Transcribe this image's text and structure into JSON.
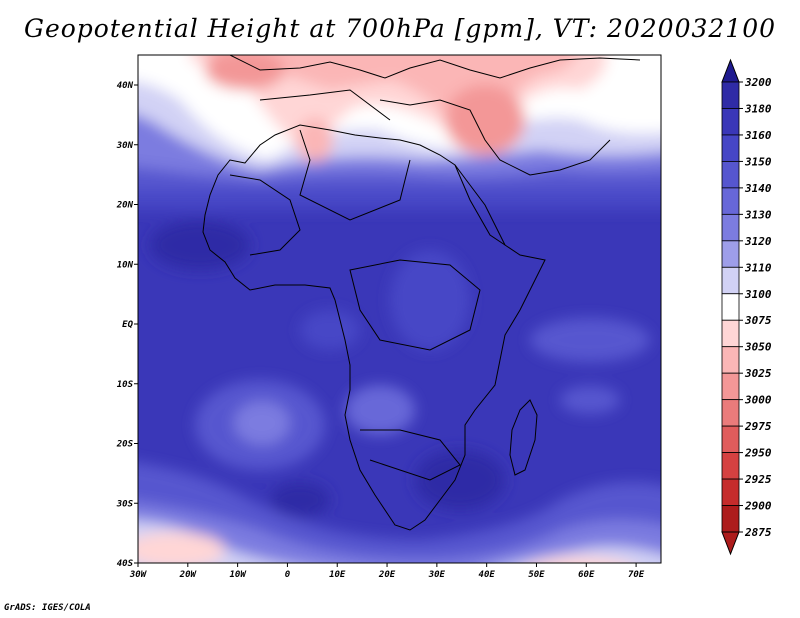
{
  "title": "Geopotential Height at 700hPa [gpm], VT: 2020032100",
  "credit": "GrADS: IGES/COLA",
  "map": {
    "lon_ticks": [
      "30W",
      "20W",
      "10W",
      "0",
      "10E",
      "20E",
      "30E",
      "40E",
      "50E",
      "60E",
      "70E"
    ],
    "lat_ticks": [
      "40N",
      "30N",
      "20N",
      "10N",
      "EQ",
      "10S",
      "20S",
      "30S",
      "40S"
    ],
    "lon_range": [
      -30,
      75
    ],
    "lat_range": [
      -40,
      45
    ],
    "region": "Africa"
  },
  "colorbar": {
    "levels": [
      "3200",
      "3180",
      "3160",
      "3150",
      "3140",
      "3130",
      "3120",
      "3110",
      "3100",
      "3075",
      "3050",
      "3025",
      "3000",
      "2975",
      "2950",
      "2925",
      "2900",
      "2875"
    ],
    "colors": [
      "#1f1a8f",
      "#2f2ba6",
      "#3a37b8",
      "#4646c6",
      "#5656cf",
      "#6767d8",
      "#7c7ce0",
      "#9e9ee9",
      "#d2d2f5",
      "#ffffff",
      "#ffd6d6",
      "#fbb6b6",
      "#f39797",
      "#ea7b7b",
      "#e05c5c",
      "#d54141",
      "#c52c2c",
      "#ad1c1c"
    ]
  }
}
